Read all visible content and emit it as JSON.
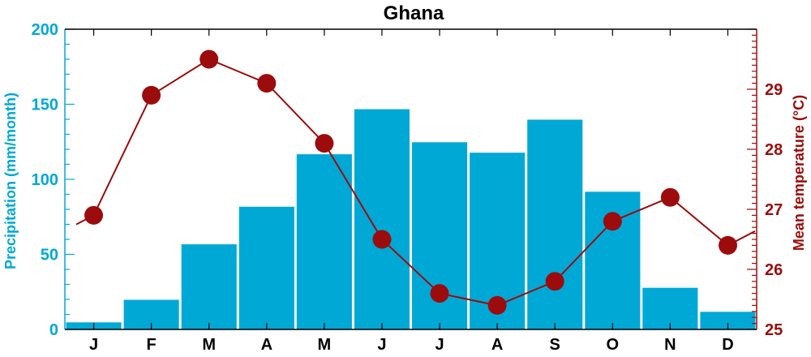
{
  "chart_data": {
    "type": "bar",
    "title": "Ghana",
    "categories": [
      "J",
      "F",
      "M",
      "A",
      "M",
      "J",
      "J",
      "A",
      "S",
      "O",
      "N",
      "D"
    ],
    "series": [
      {
        "name": "Precipitation",
        "type": "bar",
        "axis": "left",
        "values": [
          5,
          20,
          57,
          82,
          117,
          147,
          125,
          118,
          140,
          92,
          28,
          12
        ]
      },
      {
        "name": "Mean temperature",
        "type": "line",
        "axis": "right",
        "values": [
          26.9,
          28.9,
          29.5,
          29.1,
          28.1,
          26.5,
          25.6,
          25.4,
          25.8,
          26.8,
          27.2,
          26.4
        ]
      }
    ],
    "ylabel": "Precipitation (mm/month)",
    "ylim": [
      0,
      200
    ],
    "yticks": [
      "0",
      "50",
      "100",
      "150",
      "200"
    ],
    "y2label": "Mean temperature (°C)",
    "y2lim": [
      25,
      30
    ],
    "y2ticks": [
      "25",
      "26",
      "27",
      "28",
      "29"
    ],
    "grid": false,
    "colors": {
      "precip": "#00a8d6",
      "temp": "#9c0c0c",
      "axis": "#000000"
    }
  }
}
